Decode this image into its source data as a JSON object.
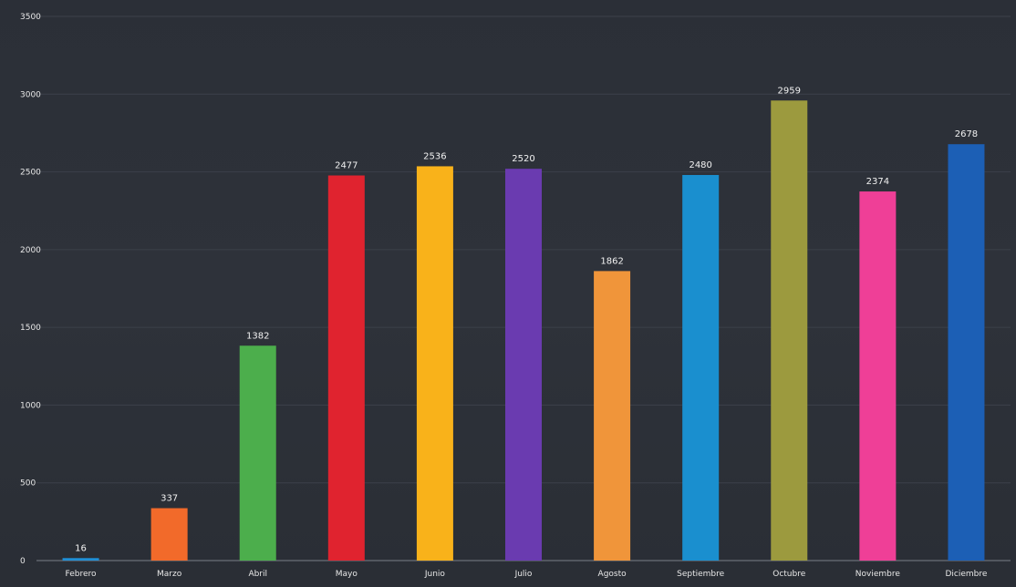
{
  "chart_data": {
    "type": "bar",
    "categories": [
      "Febrero",
      "Marzo",
      "Abril",
      "Mayo",
      "Junio",
      "Julio",
      "Agosto",
      "Septiembre",
      "Octubre",
      "Noviembre",
      "Diciembre"
    ],
    "values": [
      16,
      337,
      1382,
      2477,
      2536,
      2520,
      1862,
      2480,
      2959,
      2374,
      2678
    ],
    "data_labels": [
      "16",
      "337",
      "1382",
      "2477",
      "2536",
      "2520",
      "1862",
      "2480",
      "2959",
      "2374",
      "2678"
    ],
    "colors": [
      "#1f8fd6",
      "#f26a2a",
      "#4cae4c",
      "#e0232f",
      "#f9b21a",
      "#6a3bb0",
      "#f0953a",
      "#1a8fcf",
      "#9c9a3e",
      "#ef3f97",
      "#1c5fb5"
    ],
    "yticks": [
      0,
      500,
      1000,
      1500,
      2000,
      2500,
      3000,
      3500
    ],
    "ytick_labels": [
      "0",
      "500",
      "1000",
      "1500",
      "2000",
      "2500",
      "3000",
      "3500"
    ],
    "ylim": [
      0,
      3500
    ],
    "grid": true,
    "title": "",
    "xlabel": "",
    "ylabel": ""
  }
}
